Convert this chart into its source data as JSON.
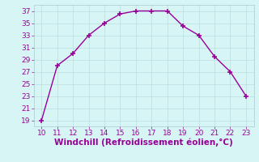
{
  "x": [
    10,
    11,
    12,
    13,
    14,
    15,
    16,
    17,
    18,
    19,
    20,
    21,
    22,
    23
  ],
  "y": [
    19,
    28,
    30,
    33,
    35,
    36.5,
    37,
    37,
    37,
    34.5,
    33,
    29.5,
    27,
    23
  ],
  "line_color": "#990099",
  "marker": "+",
  "marker_size": 5,
  "marker_linewidth": 1.2,
  "xlabel": "Windchill (Refroidissement éolien,°C)",
  "xlim": [
    9.5,
    23.5
  ],
  "ylim": [
    18,
    38
  ],
  "xticks": [
    10,
    11,
    12,
    13,
    14,
    15,
    16,
    17,
    18,
    19,
    20,
    21,
    22,
    23
  ],
  "yticks": [
    19,
    21,
    23,
    25,
    27,
    29,
    31,
    33,
    35,
    37
  ],
  "background_color": "#d8f5f5",
  "grid_color": "#b8dede",
  "tick_color": "#990099",
  "label_color": "#990099",
  "tick_fontsize": 6.5,
  "xlabel_fontsize": 7.5,
  "linewidth": 1.0
}
